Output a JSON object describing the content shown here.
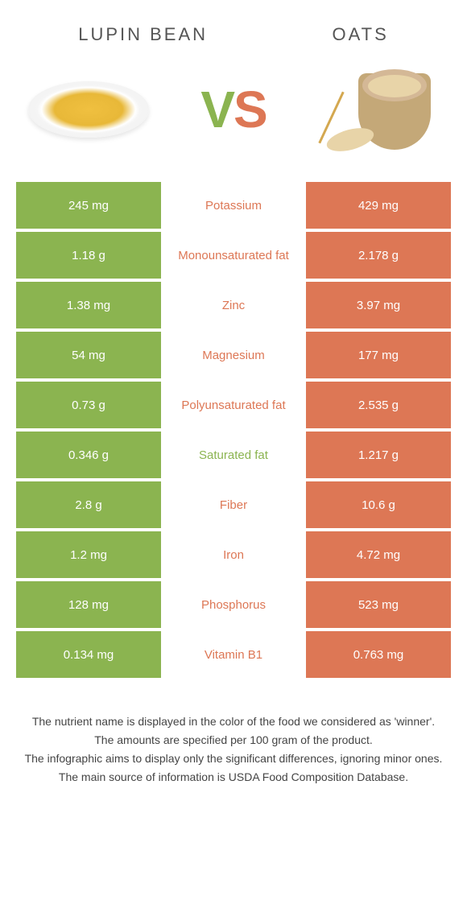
{
  "titles": {
    "left": "Lupin Bean",
    "right": "Oats"
  },
  "vs": {
    "v": "V",
    "s": "S"
  },
  "colors": {
    "left": "#8bb450",
    "right": "#dd7755",
    "background": "#ffffff"
  },
  "rows": [
    {
      "left": "245 mg",
      "label": "Potassium",
      "right": "429 mg",
      "winner": "right"
    },
    {
      "left": "1.18 g",
      "label": "Monounsaturated fat",
      "right": "2.178 g",
      "winner": "right"
    },
    {
      "left": "1.38 mg",
      "label": "Zinc",
      "right": "3.97 mg",
      "winner": "right"
    },
    {
      "left": "54 mg",
      "label": "Magnesium",
      "right": "177 mg",
      "winner": "right"
    },
    {
      "left": "0.73 g",
      "label": "Polyunsaturated fat",
      "right": "2.535 g",
      "winner": "right"
    },
    {
      "left": "0.346 g",
      "label": "Saturated fat",
      "right": "1.217 g",
      "winner": "left"
    },
    {
      "left": "2.8 g",
      "label": "Fiber",
      "right": "10.6 g",
      "winner": "right"
    },
    {
      "left": "1.2 mg",
      "label": "Iron",
      "right": "4.72 mg",
      "winner": "right"
    },
    {
      "left": "128 mg",
      "label": "Phosphorus",
      "right": "523 mg",
      "winner": "right"
    },
    {
      "left": "0.134 mg",
      "label": "Vitamin B1",
      "right": "0.763 mg",
      "winner": "right"
    }
  ],
  "footer": [
    "The nutrient name is displayed in the color of the food we considered as 'winner'.",
    "The amounts are specified per 100 gram of the product.",
    "The infographic aims to display only the significant differences, ignoring minor ones.",
    "The main source of information is USDA Food Composition Database."
  ]
}
